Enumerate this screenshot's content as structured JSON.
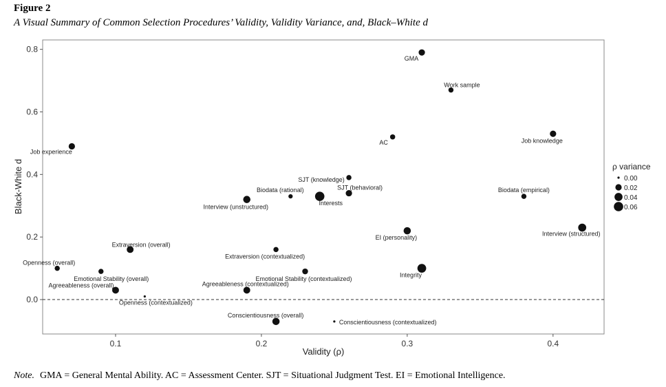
{
  "figure": {
    "label": "Figure 2",
    "title": "A Visual Summary of Common Selection Procedures’ Validity, Validity Variance, and, Black–White d"
  },
  "note": {
    "label": "Note.",
    "text": "GMA = General Mental Ability. AC = Assessment Center. SJT = Situational Judgment Test. EI = Emotional Intelligence."
  },
  "chart_data": {
    "type": "scatter",
    "title": "",
    "xlabel": "Validity (ρ)",
    "ylabel": "Black-White d",
    "xlim": [
      0.05,
      0.435
    ],
    "ylim": [
      -0.11,
      0.83
    ],
    "xticks": [
      0.1,
      0.2,
      0.3,
      0.4
    ],
    "yticks": [
      0.0,
      0.2,
      0.4,
      0.6,
      0.8
    ],
    "xtick_labels": [
      "0.1",
      "0.2",
      "0.3",
      "0.4"
    ],
    "ytick_labels": [
      "0.0",
      "0.2",
      "0.4",
      "0.6",
      "0.8"
    ],
    "reference_line": {
      "y": 0.0,
      "style": "dashed"
    },
    "size_variable": "ρ variance",
    "legend": {
      "title": "ρ variance",
      "position": "right",
      "entries": [
        {
          "label": "0.00",
          "value": 0.0
        },
        {
          "label": "0.02",
          "value": 0.02
        },
        {
          "label": "0.04",
          "value": 0.04
        },
        {
          "label": "0.06",
          "value": 0.06
        }
      ]
    },
    "points": [
      {
        "label": "GMA",
        "x": 0.31,
        "y": 0.79,
        "variance": 0.02
      },
      {
        "label": "Work sample",
        "x": 0.33,
        "y": 0.67,
        "variance": 0.01
      },
      {
        "label": "Job knowledge",
        "x": 0.4,
        "y": 0.53,
        "variance": 0.02
      },
      {
        "label": "AC",
        "x": 0.29,
        "y": 0.52,
        "variance": 0.01
      },
      {
        "label": "Job experience",
        "x": 0.07,
        "y": 0.49,
        "variance": 0.02
      },
      {
        "label": "SJT (knowledge)",
        "x": 0.26,
        "y": 0.39,
        "variance": 0.01
      },
      {
        "label": "SJT (behavioral)",
        "x": 0.26,
        "y": 0.34,
        "variance": 0.02
      },
      {
        "label": "Biodata (rational)",
        "x": 0.22,
        "y": 0.33,
        "variance": 0.005
      },
      {
        "label": "Interests",
        "x": 0.24,
        "y": 0.33,
        "variance": 0.06
      },
      {
        "label": "Interview (unstructured)",
        "x": 0.19,
        "y": 0.32,
        "variance": 0.03
      },
      {
        "label": "Biodata (empirical)",
        "x": 0.38,
        "y": 0.33,
        "variance": 0.01
      },
      {
        "label": "Interview (structured)",
        "x": 0.42,
        "y": 0.23,
        "variance": 0.04
      },
      {
        "label": "EI (personality)",
        "x": 0.3,
        "y": 0.22,
        "variance": 0.03
      },
      {
        "label": "Extraversion (overall)",
        "x": 0.11,
        "y": 0.16,
        "variance": 0.025
      },
      {
        "label": "Extraversion (contextualized)",
        "x": 0.21,
        "y": 0.16,
        "variance": 0.01
      },
      {
        "label": "Integrity",
        "x": 0.31,
        "y": 0.1,
        "variance": 0.05
      },
      {
        "label": "Openness (overall)",
        "x": 0.06,
        "y": 0.1,
        "variance": 0.01
      },
      {
        "label": "Emotional Stability (overall)",
        "x": 0.09,
        "y": 0.09,
        "variance": 0.01
      },
      {
        "label": "Emotional Stability (contextualized)",
        "x": 0.23,
        "y": 0.09,
        "variance": 0.015
      },
      {
        "label": "Agreeableness (overall)",
        "x": 0.1,
        "y": 0.03,
        "variance": 0.025
      },
      {
        "label": "Agreeableness (contextualized)",
        "x": 0.19,
        "y": 0.03,
        "variance": 0.025
      },
      {
        "label": "Openness (contextualized)",
        "x": 0.12,
        "y": 0.01,
        "variance": 0.0
      },
      {
        "label": "Conscientiousness (overall)",
        "x": 0.21,
        "y": -0.07,
        "variance": 0.03
      },
      {
        "label": "Conscientiousness (contextualized)",
        "x": 0.25,
        "y": -0.07,
        "variance": 0.0
      }
    ]
  }
}
